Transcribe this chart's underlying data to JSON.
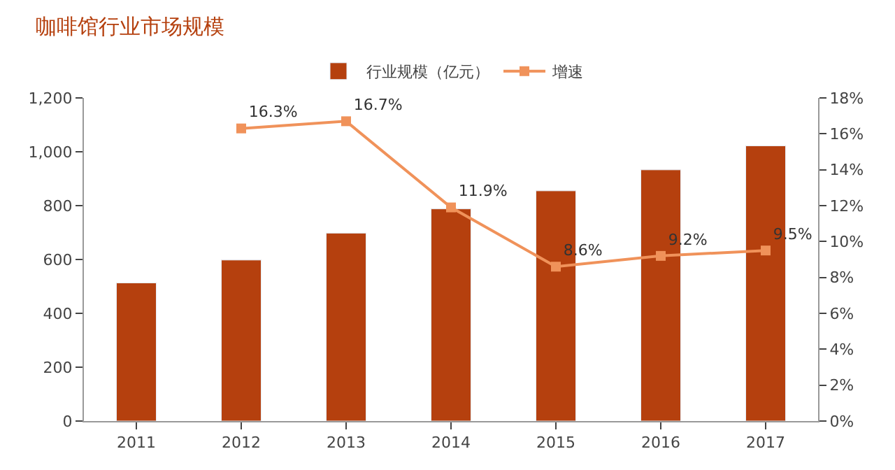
{
  "chart_data": {
    "type": "bar",
    "title": "咖啡馆行业市场规模",
    "categories": [
      "2011",
      "2012",
      "2013",
      "2014",
      "2015",
      "2016",
      "2017"
    ],
    "series": [
      {
        "name": "行业规模（亿元）",
        "color": "#b5400e",
        "values": [
          513,
          598,
          698,
          788,
          855,
          933,
          1022
        ]
      },
      {
        "name": "增速",
        "type": "line",
        "axis": "y2",
        "color": "#f0925a",
        "marker": "square",
        "values": [
          null,
          16.3,
          16.7,
          11.9,
          8.6,
          9.2,
          9.5
        ],
        "value_labels": [
          null,
          "16.3%",
          "16.7%",
          "11.9%",
          "8.6%",
          "9.2%",
          "9.5%"
        ]
      }
    ],
    "ylim": [
      0,
      1200
    ],
    "yticks": [
      0,
      200,
      400,
      600,
      800,
      {
        "value": 1000,
        "label": "1,000"
      },
      {
        "value": 1200,
        "label": "1,200"
      }
    ],
    "y2lim": [
      0,
      18
    ],
    "y2ticks": [
      {
        "value": 0,
        "label": "0%"
      },
      {
        "value": 2,
        "label": "2%"
      },
      {
        "value": 4,
        "label": "4%"
      },
      {
        "value": 6,
        "label": "6%"
      },
      {
        "value": 8,
        "label": "8%"
      },
      {
        "value": 10,
        "label": "10%"
      },
      {
        "value": 12,
        "label": "12%"
      },
      {
        "value": 14,
        "label": "14%"
      },
      {
        "value": 16,
        "label": "16%"
      },
      {
        "value": 18,
        "label": "18%"
      }
    ],
    "legend": "top"
  }
}
